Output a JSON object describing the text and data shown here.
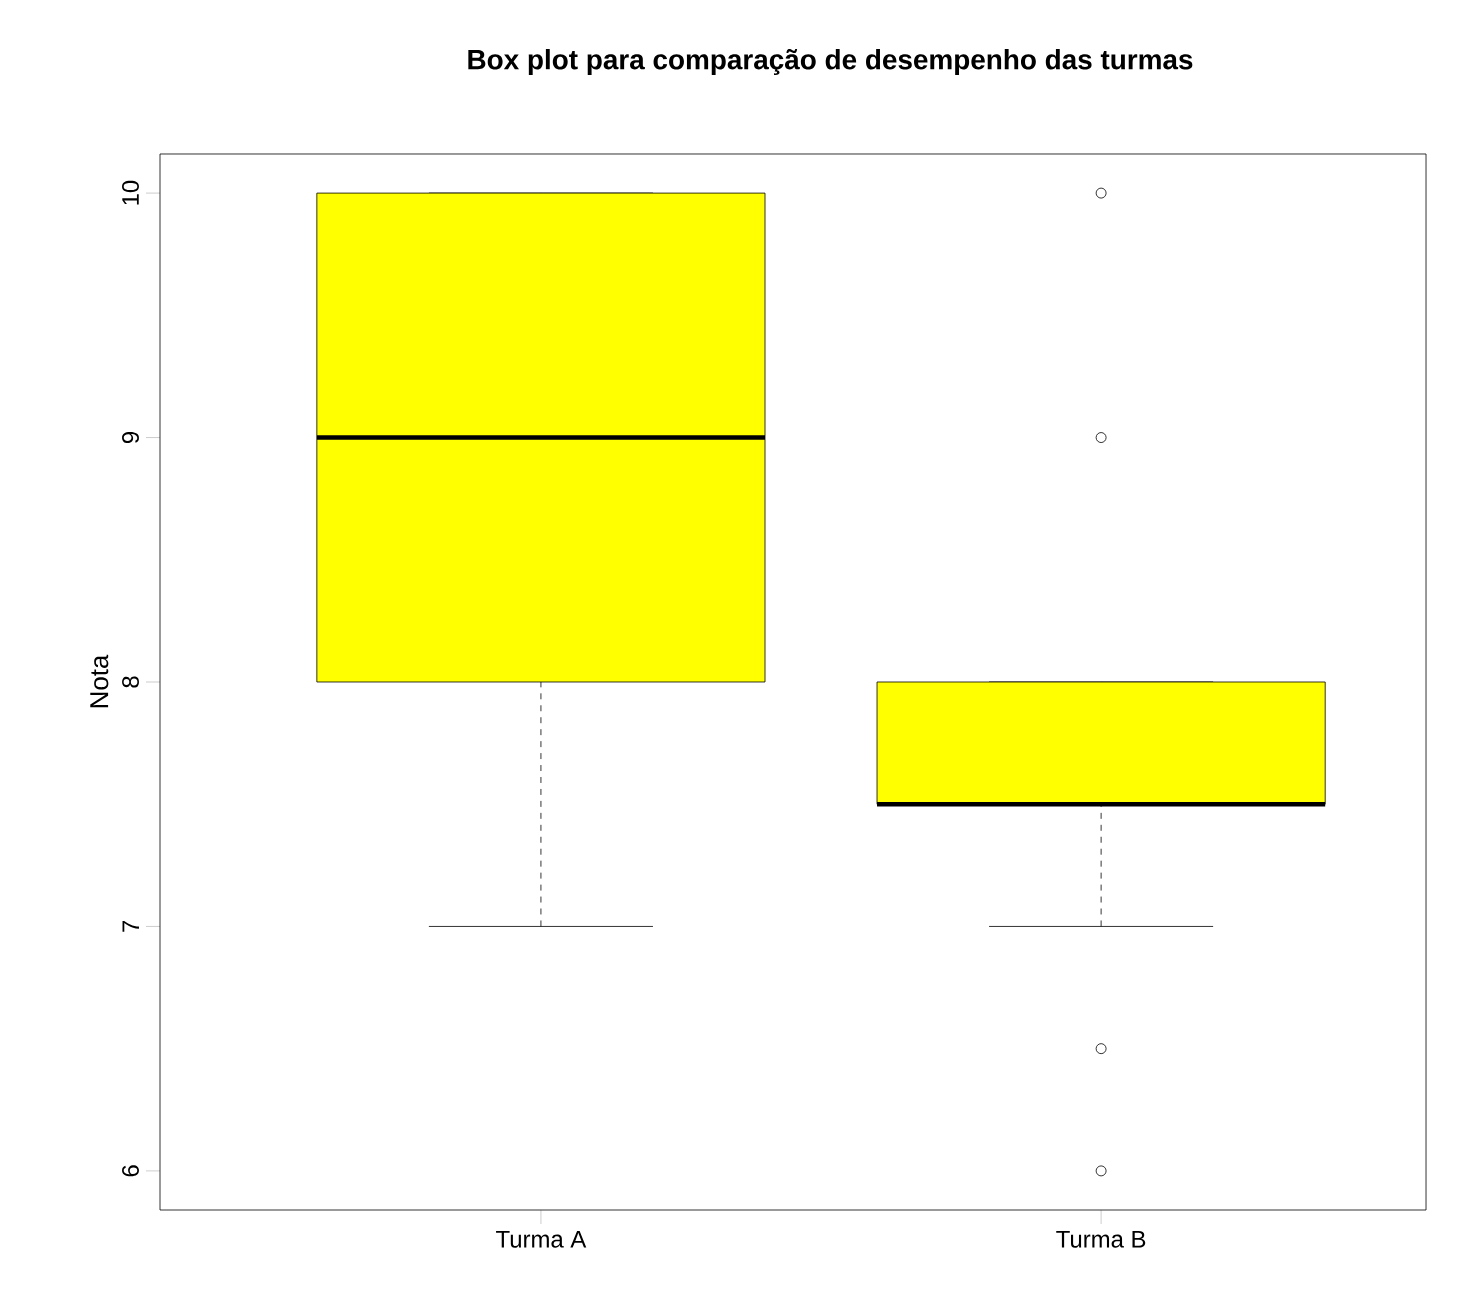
{
  "chart_data": {
    "type": "box",
    "title": "Box plot para comparação de desempenho das turmas",
    "ylabel": "Nota",
    "categories": [
      "Turma A",
      "Turma B"
    ],
    "color": "#ffff00",
    "boxes": [
      {
        "low": 7,
        "q1": 8,
        "median": 9,
        "q3": 10,
        "high": 10
      },
      {
        "low": 7,
        "q1": 7.5,
        "median": 7.5,
        "q3": 8,
        "high": 8,
        "outliers": [
          10,
          9,
          6.5,
          6
        ]
      }
    ],
    "ylim": [
      5.84,
      10.16
    ],
    "yticks": [
      6,
      7,
      8,
      9,
      10
    ],
    "grid": false,
    "marker": "circle"
  }
}
